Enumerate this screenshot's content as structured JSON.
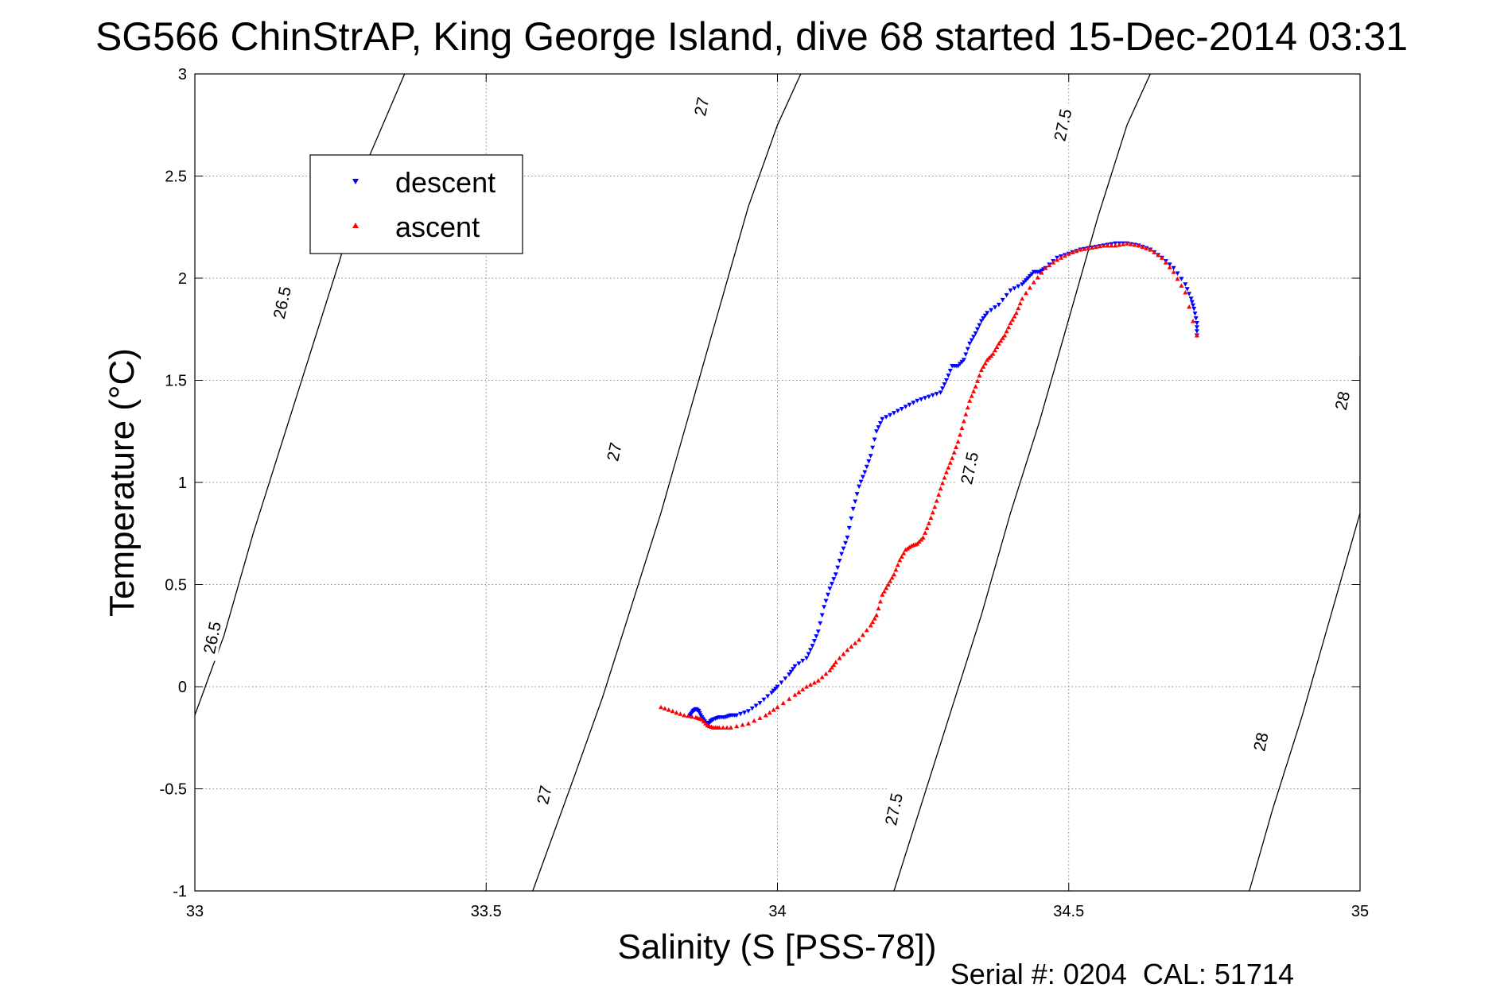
{
  "chart_data": {
    "type": "scatter",
    "title": "SG566 ChinStrAP, King George Island, dive 68 started 15-Dec-2014 03:31",
    "xlabel": "Salinity (S [PSS-78])",
    "ylabel": "Temperature (°C)",
    "xlim": [
      33,
      35
    ],
    "ylim": [
      -1,
      3
    ],
    "x_ticks": [
      33,
      33.5,
      34,
      34.5,
      35
    ],
    "x_tick_labels": [
      "33",
      "33.5",
      "34",
      "34.5",
      "35"
    ],
    "y_ticks": [
      -1,
      -0.5,
      0,
      0.5,
      1,
      1.5,
      2,
      2.5,
      3
    ],
    "y_tick_labels": [
      "-1",
      "-0.5",
      "0",
      "0.5",
      "1",
      "1.5",
      "2",
      "2.5",
      "3"
    ],
    "grid": true,
    "legend_position": "top-left",
    "footer": "Serial #: 0204  CAL: 51714",
    "contours": [
      {
        "label": "26.5",
        "points": [
          [
            32.996,
            -0.17
          ],
          [
            33.05,
            0.25
          ],
          [
            33.1,
            0.75
          ],
          [
            33.15,
            1.2
          ],
          [
            33.2,
            1.65
          ],
          [
            33.25,
            2.1
          ],
          [
            33.3,
            2.6
          ],
          [
            33.36,
            3.0
          ]
        ]
      },
      {
        "label": "27",
        "points": [
          [
            33.58,
            -1.0
          ],
          [
            33.65,
            -0.45
          ],
          [
            33.7,
            -0.05
          ],
          [
            33.75,
            0.4
          ],
          [
            33.8,
            0.85
          ],
          [
            33.85,
            1.35
          ],
          [
            33.9,
            1.85
          ],
          [
            33.95,
            2.35
          ],
          [
            34.0,
            2.75
          ],
          [
            34.04,
            3.0
          ]
        ]
      },
      {
        "label": "27.5",
        "points": [
          [
            34.2,
            -1.0
          ],
          [
            34.25,
            -0.55
          ],
          [
            34.3,
            -0.1
          ],
          [
            34.35,
            0.35
          ],
          [
            34.4,
            0.85
          ],
          [
            34.45,
            1.3
          ],
          [
            34.5,
            1.8
          ],
          [
            34.55,
            2.3
          ],
          [
            34.6,
            2.75
          ],
          [
            34.64,
            3.0
          ]
        ]
      },
      {
        "label": "28",
        "points": [
          [
            34.81,
            -1.0
          ],
          [
            34.85,
            -0.6
          ],
          [
            34.9,
            -0.15
          ],
          [
            34.95,
            0.35
          ],
          [
            35.0,
            0.85
          ],
          [
            35.0,
            1.62
          ]
        ]
      }
    ],
    "contour_labels": [
      {
        "text": "26.5",
        "x": 33.15,
        "y": 1.88
      },
      {
        "text": "26.5",
        "x": 33.03,
        "y": 0.24
      },
      {
        "text": "27",
        "x": 33.87,
        "y": 2.84
      },
      {
        "text": "27",
        "x": 33.72,
        "y": 1.15
      },
      {
        "text": "27",
        "x": 33.6,
        "y": -0.53
      },
      {
        "text": "27.5",
        "x": 34.49,
        "y": 2.75
      },
      {
        "text": "27.5",
        "x": 34.33,
        "y": 1.07
      },
      {
        "text": "27.5",
        "x": 34.2,
        "y": -0.6
      },
      {
        "text": "28",
        "x": 34.97,
        "y": 1.4
      },
      {
        "text": "28",
        "x": 34.83,
        "y": -0.27
      }
    ],
    "series": [
      {
        "name": "descent",
        "color": "#0000ff",
        "marker": "triangle-down",
        "x": [
          33.85,
          33.855,
          33.86,
          33.865,
          33.87,
          33.875,
          33.88,
          33.885,
          33.89,
          33.9,
          33.91,
          33.92,
          33.93,
          33.95,
          33.97,
          33.99,
          34.0,
          34.02,
          34.03,
          34.05,
          34.06,
          34.07,
          34.08,
          34.09,
          34.1,
          34.11,
          34.12,
          34.13,
          34.14,
          34.15,
          34.16,
          34.17,
          34.18,
          34.2,
          34.22,
          34.24,
          34.26,
          34.28,
          34.29,
          34.3,
          34.31,
          34.32,
          34.33,
          34.34,
          34.35,
          34.36,
          34.38,
          34.4,
          34.42,
          34.43,
          34.44,
          34.45,
          34.46,
          34.48,
          34.5,
          34.52,
          34.54,
          34.56,
          34.58,
          34.6,
          34.62,
          34.64,
          34.66,
          34.68,
          34.7,
          34.71,
          34.715,
          34.72,
          34.72
        ],
        "y": [
          -0.14,
          -0.12,
          -0.11,
          -0.12,
          -0.15,
          -0.17,
          -0.19,
          -0.17,
          -0.16,
          -0.15,
          -0.15,
          -0.14,
          -0.14,
          -0.12,
          -0.08,
          -0.03,
          0.0,
          0.06,
          0.1,
          0.14,
          0.2,
          0.27,
          0.39,
          0.48,
          0.55,
          0.65,
          0.73,
          0.87,
          0.98,
          1.05,
          1.13,
          1.25,
          1.31,
          1.34,
          1.37,
          1.4,
          1.42,
          1.44,
          1.5,
          1.57,
          1.57,
          1.6,
          1.68,
          1.73,
          1.79,
          1.83,
          1.87,
          1.94,
          1.97,
          2.0,
          2.03,
          2.03,
          2.05,
          2.1,
          2.12,
          2.14,
          2.15,
          2.16,
          2.17,
          2.17,
          2.16,
          2.14,
          2.1,
          2.05,
          1.97,
          1.9,
          1.85,
          1.78,
          1.72
        ]
      },
      {
        "name": "ascent",
        "color": "#ff0000",
        "marker": "triangle-up",
        "x": [
          33.8,
          33.82,
          33.84,
          33.86,
          33.87,
          33.88,
          33.89,
          33.9,
          33.92,
          33.95,
          33.98,
          34.0,
          34.03,
          34.05,
          34.07,
          34.09,
          34.1,
          34.12,
          34.14,
          34.16,
          34.17,
          34.18,
          34.19,
          34.2,
          34.21,
          34.22,
          34.23,
          34.24,
          34.25,
          34.26,
          34.27,
          34.28,
          34.29,
          34.3,
          34.31,
          34.32,
          34.33,
          34.34,
          34.35,
          34.36,
          34.37,
          34.38,
          34.39,
          34.4,
          34.41,
          34.42,
          34.44,
          34.46,
          34.48,
          34.5,
          34.52,
          34.54,
          34.56,
          34.58,
          34.6,
          34.62,
          34.64,
          34.66,
          34.68,
          34.7,
          34.72
        ],
        "y": [
          -0.1,
          -0.12,
          -0.14,
          -0.15,
          -0.16,
          -0.19,
          -0.2,
          -0.2,
          -0.2,
          -0.18,
          -0.14,
          -0.1,
          -0.04,
          0.0,
          0.03,
          0.08,
          0.12,
          0.18,
          0.23,
          0.3,
          0.35,
          0.45,
          0.5,
          0.55,
          0.62,
          0.67,
          0.69,
          0.7,
          0.73,
          0.8,
          0.88,
          0.97,
          1.05,
          1.12,
          1.2,
          1.3,
          1.4,
          1.47,
          1.55,
          1.6,
          1.63,
          1.68,
          1.72,
          1.78,
          1.83,
          1.9,
          1.98,
          2.05,
          2.09,
          2.12,
          2.14,
          2.15,
          2.16,
          2.16,
          2.17,
          2.16,
          2.14,
          2.1,
          2.03,
          1.93,
          1.72
        ]
      }
    ]
  }
}
